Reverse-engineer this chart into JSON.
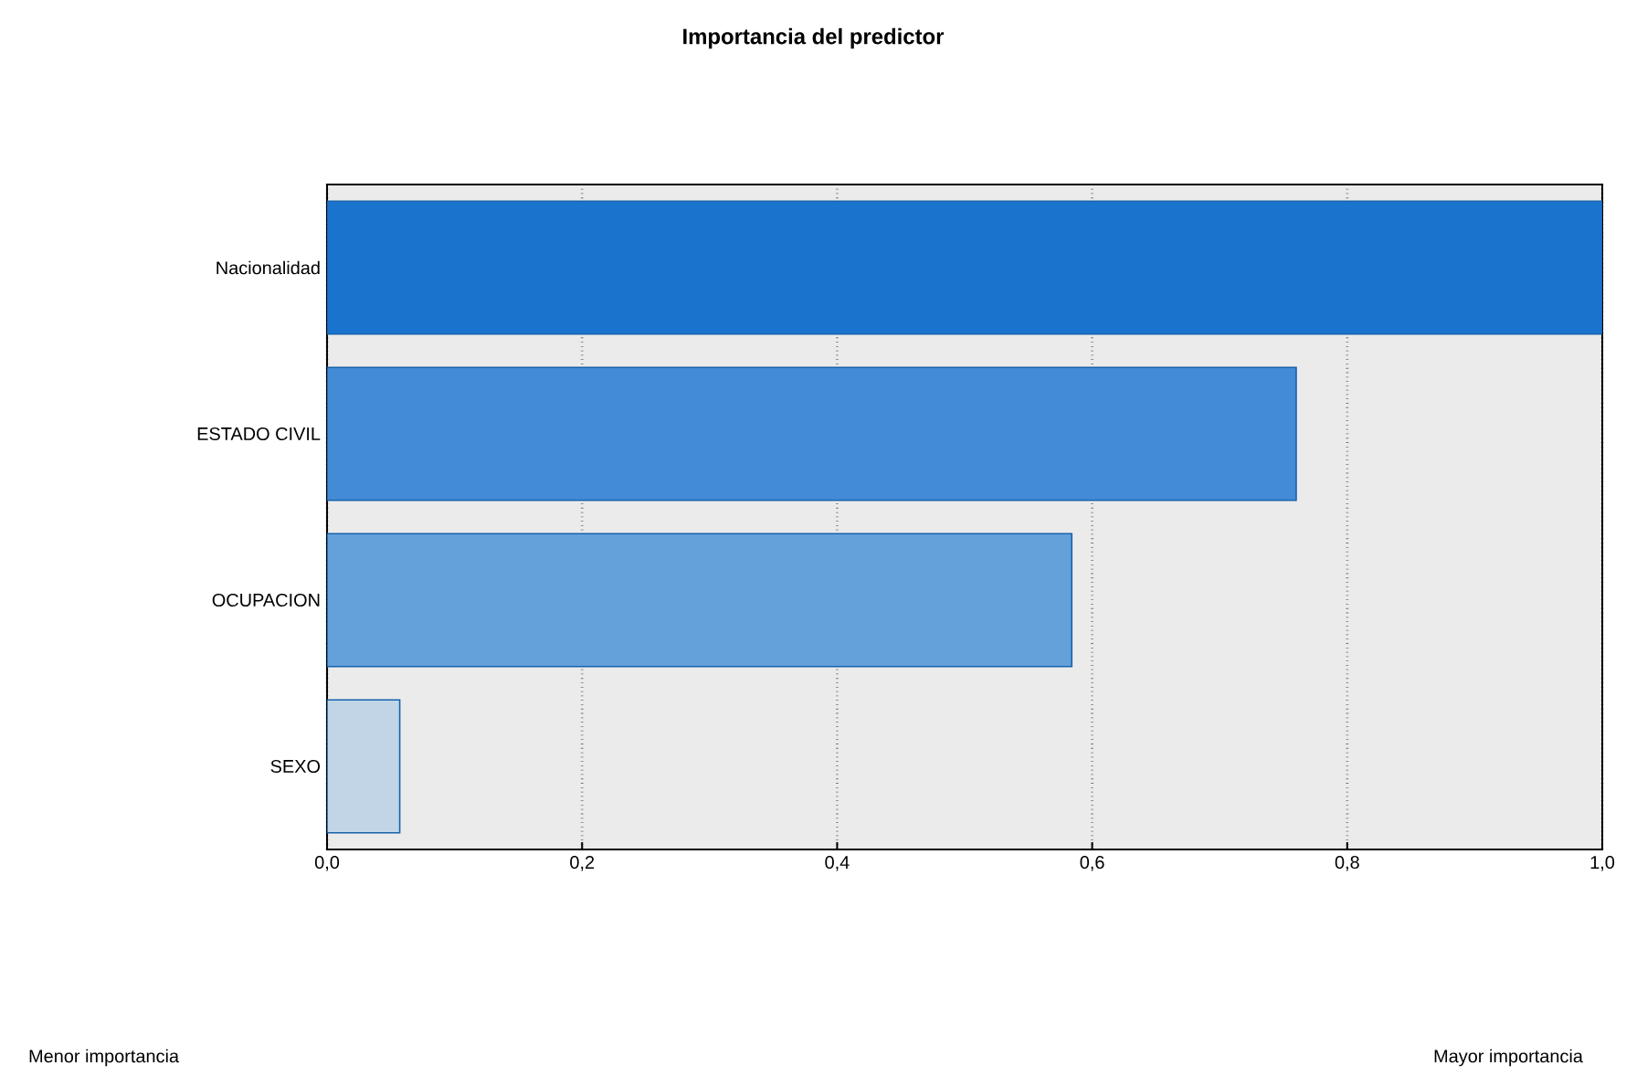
{
  "chart_data": {
    "type": "bar",
    "orientation": "horizontal",
    "title": "Importancia del predictor",
    "categories": [
      "Nacionalidad",
      "ESTADO CIVIL",
      "OCUPACION",
      "SEXO"
    ],
    "values": [
      1.0,
      0.76,
      0.584,
      0.057
    ],
    "colors": [
      "#1a73cc",
      "#448bd5",
      "#64a0da",
      "#c2d5e6"
    ],
    "xlim": [
      0,
      1
    ],
    "xticks": [
      {
        "value": 0,
        "label": "0,0"
      },
      {
        "value": 0.2,
        "label": "0,2"
      },
      {
        "value": 0.4,
        "label": "0,4"
      },
      {
        "value": 0.6,
        "label": "0,6"
      },
      {
        "value": 0.8,
        "label": "0,8"
      },
      {
        "value": 1,
        "label": "1,0"
      }
    ],
    "grid": "x",
    "annotations": [
      "Menor importancia",
      "Mayor importancia"
    ]
  }
}
